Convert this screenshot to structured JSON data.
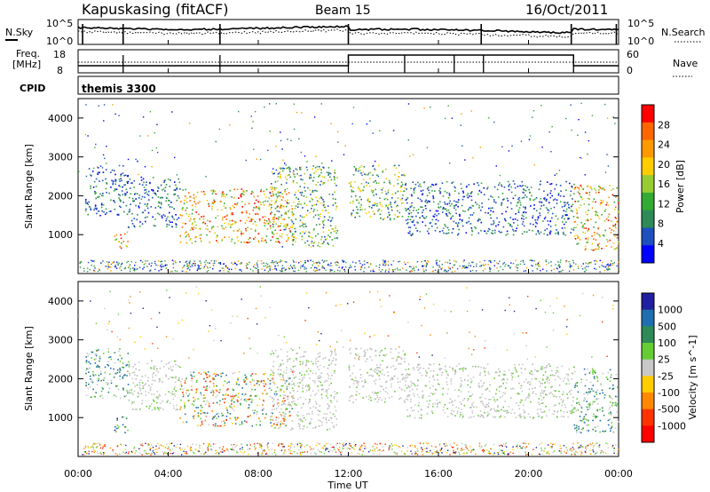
{
  "header": {
    "station": "Kapuskasing (fitACF)",
    "beam": "Beam 15",
    "date": "16/Oct/2011"
  },
  "strip_labels": {
    "nsky": "N.Sky",
    "nsky_ticks": [
      "10^5",
      "10^0"
    ],
    "nsearch": "N.Search",
    "nsearch_ticks": [
      "10^5",
      "10^0"
    ],
    "freq": "Freq.",
    "freq_unit": "[MHz]",
    "freq_ticks": [
      "18",
      "8"
    ],
    "nave": "Nave",
    "nave_ticks": [
      "60",
      "0"
    ],
    "cpid": "CPID",
    "cpid_value": "themis 3300"
  },
  "chart_data": [
    {
      "type": "heatmap",
      "name": "Power",
      "ylabel": "Slant Range [km]",
      "yticks": [
        "1000",
        "2000",
        "3000",
        "4000"
      ],
      "ylim": [
        0,
        4500
      ],
      "colorbar_label": "Power [dB]",
      "colorbar_ticks": [
        "28",
        "24",
        "20",
        "16",
        "12",
        "8",
        "4"
      ],
      "colorbar_colors": [
        "#ff0000",
        "#ff6600",
        "#ff9900",
        "#ffcc00",
        "#99cc33",
        "#33aa33",
        "#2e8b57",
        "#1e4fbf",
        "#0000ff"
      ],
      "scatter_regions": [
        {
          "t": [
            0.3,
            2.2
          ],
          "r": [
            1500,
            2800
          ],
          "intensity": "low"
        },
        {
          "t": [
            1.6,
            2.2
          ],
          "r": [
            600,
            1100
          ],
          "intensity": "high"
        },
        {
          "t": [
            2.2,
            4.5
          ],
          "r": [
            1200,
            2500
          ],
          "intensity": "low"
        },
        {
          "t": [
            4.5,
            9.5
          ],
          "r": [
            800,
            2200
          ],
          "intensity": "high"
        },
        {
          "t": [
            8.5,
            11.5
          ],
          "r": [
            700,
            2800
          ],
          "intensity": "medium"
        },
        {
          "t": [
            12.0,
            14.5
          ],
          "r": [
            1400,
            2800
          ],
          "intensity": "medium"
        },
        {
          "t": [
            14.5,
            22.0
          ],
          "r": [
            1000,
            2400
          ],
          "intensity": "low"
        },
        {
          "t": [
            22.0,
            24.0
          ],
          "r": [
            600,
            2300
          ],
          "intensity": "high"
        }
      ]
    },
    {
      "type": "heatmap",
      "name": "Velocity",
      "ylabel": "Slant Range [km]",
      "yticks": [
        "1000",
        "2000",
        "3000",
        "4000"
      ],
      "ylim": [
        0,
        4500
      ],
      "colorbar_label": "Velocity [m s^-1]",
      "colorbar_ticks": [
        "1000",
        "500",
        "100",
        "25",
        "-25",
        "-100",
        "-500",
        "-1000"
      ],
      "colorbar_colors": [
        "#2020a0",
        "#1f6fb0",
        "#2e8b57",
        "#66cc33",
        "#c8c8c8",
        "#ffcc00",
        "#ff8800",
        "#ff3300",
        "#ff0000"
      ],
      "scatter_regions": [
        {
          "t": [
            0.3,
            2.2
          ],
          "r": [
            1500,
            2800
          ],
          "mix": "green"
        },
        {
          "t": [
            1.6,
            2.2
          ],
          "r": [
            600,
            1100
          ],
          "mix": "blue"
        },
        {
          "t": [
            2.2,
            4.5
          ],
          "r": [
            1200,
            2500
          ],
          "mix": "grey"
        },
        {
          "t": [
            4.5,
            9.5
          ],
          "r": [
            800,
            2200
          ],
          "mix": "mixed"
        },
        {
          "t": [
            8.5,
            11.5
          ],
          "r": [
            700,
            2800
          ],
          "mix": "grey"
        },
        {
          "t": [
            12.0,
            14.5
          ],
          "r": [
            1400,
            2800
          ],
          "mix": "grey"
        },
        {
          "t": [
            14.5,
            22.0
          ],
          "r": [
            1000,
            2400
          ],
          "mix": "grey"
        },
        {
          "t": [
            22.0,
            24.0
          ],
          "r": [
            600,
            2300
          ],
          "mix": "green"
        }
      ]
    }
  ],
  "x_axis": {
    "label": "Time UT",
    "ticks": [
      "00:00",
      "04:00",
      "08:00",
      "12:00",
      "16:00",
      "20:00",
      "00:00"
    ],
    "range_hours": [
      0,
      24
    ]
  }
}
